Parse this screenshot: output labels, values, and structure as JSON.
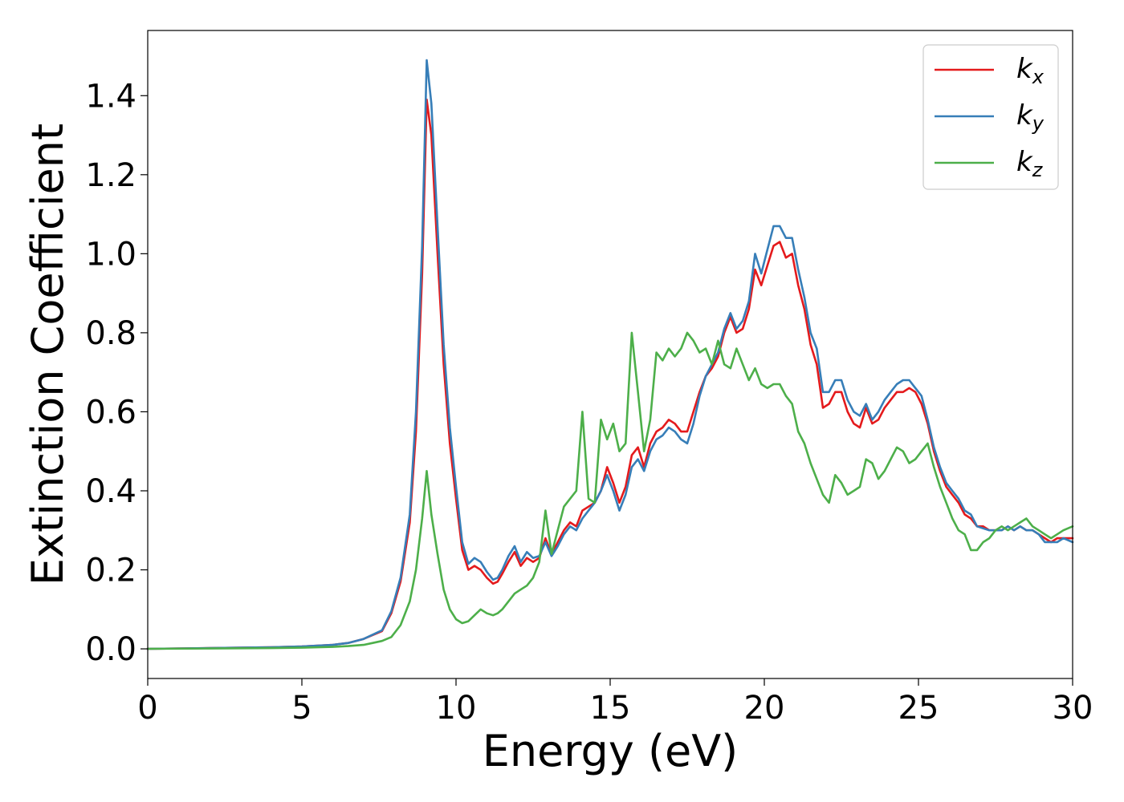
{
  "chart_data": {
    "type": "line",
    "xlabel": "Energy (eV)",
    "ylabel": "Extinction Coefficient",
    "xlim": [
      0,
      30
    ],
    "ylim": [
      -0.075,
      1.565
    ],
    "xticks": [
      0,
      5,
      10,
      15,
      20,
      25,
      30
    ],
    "xtick_labels": [
      "0",
      "5",
      "10",
      "15",
      "20",
      "25",
      "30"
    ],
    "yticks": [
      0.0,
      0.2,
      0.4,
      0.6,
      0.8,
      1.0,
      1.2,
      1.4
    ],
    "ytick_labels": [
      "0.0",
      "0.2",
      "0.4",
      "0.6",
      "0.8",
      "1.0",
      "1.2",
      "1.4"
    ],
    "grid": false,
    "legend_position": "top-right",
    "series": [
      {
        "name": "k_x",
        "legend_base": "k",
        "legend_sub": "x",
        "color": "#e41a1c",
        "x": [
          0,
          2,
          4,
          5,
          6,
          6.5,
          7,
          7.3,
          7.6,
          7.9,
          8.2,
          8.5,
          8.7,
          8.9,
          9.05,
          9.2,
          9.4,
          9.6,
          9.8,
          10.0,
          10.2,
          10.4,
          10.6,
          10.8,
          11.0,
          11.2,
          11.35,
          11.5,
          11.7,
          11.9,
          12.1,
          12.3,
          12.5,
          12.7,
          12.9,
          13.1,
          13.3,
          13.5,
          13.7,
          13.9,
          14.1,
          14.3,
          14.5,
          14.7,
          14.9,
          15.1,
          15.3,
          15.5,
          15.7,
          15.9,
          16.1,
          16.3,
          16.5,
          16.7,
          16.9,
          17.1,
          17.3,
          17.5,
          17.7,
          17.9,
          18.1,
          18.3,
          18.5,
          18.7,
          18.9,
          19.1,
          19.3,
          19.5,
          19.7,
          19.9,
          20.1,
          20.3,
          20.5,
          20.7,
          20.9,
          21.1,
          21.3,
          21.5,
          21.7,
          21.9,
          22.1,
          22.3,
          22.5,
          22.7,
          22.9,
          23.1,
          23.3,
          23.5,
          23.7,
          23.9,
          24.1,
          24.3,
          24.5,
          24.7,
          24.9,
          25.1,
          25.3,
          25.5,
          25.7,
          25.9,
          26.1,
          26.3,
          26.5,
          26.7,
          26.9,
          27.1,
          27.3,
          27.5,
          27.7,
          27.9,
          28.1,
          28.3,
          28.5,
          28.7,
          28.9,
          29.1,
          29.3,
          29.5,
          29.7,
          30.0
        ],
        "y": [
          0.0,
          0.002,
          0.004,
          0.006,
          0.01,
          0.015,
          0.025,
          0.035,
          0.045,
          0.09,
          0.17,
          0.32,
          0.55,
          0.95,
          1.39,
          1.3,
          1.0,
          0.72,
          0.52,
          0.38,
          0.25,
          0.2,
          0.21,
          0.2,
          0.18,
          0.165,
          0.17,
          0.19,
          0.22,
          0.245,
          0.21,
          0.23,
          0.22,
          0.23,
          0.28,
          0.24,
          0.27,
          0.3,
          0.32,
          0.31,
          0.35,
          0.36,
          0.37,
          0.4,
          0.46,
          0.42,
          0.37,
          0.41,
          0.49,
          0.51,
          0.46,
          0.52,
          0.55,
          0.56,
          0.58,
          0.57,
          0.55,
          0.55,
          0.6,
          0.65,
          0.69,
          0.71,
          0.74,
          0.8,
          0.84,
          0.8,
          0.81,
          0.86,
          0.96,
          0.92,
          0.97,
          1.02,
          1.03,
          0.99,
          1.0,
          0.92,
          0.86,
          0.77,
          0.72,
          0.61,
          0.62,
          0.65,
          0.65,
          0.6,
          0.57,
          0.56,
          0.61,
          0.57,
          0.58,
          0.61,
          0.63,
          0.65,
          0.65,
          0.66,
          0.65,
          0.62,
          0.57,
          0.5,
          0.45,
          0.41,
          0.39,
          0.37,
          0.34,
          0.33,
          0.31,
          0.31,
          0.3,
          0.3,
          0.3,
          0.31,
          0.3,
          0.31,
          0.3,
          0.3,
          0.29,
          0.28,
          0.27,
          0.28,
          0.28,
          0.28
        ]
      },
      {
        "name": "k_y",
        "legend_base": "k",
        "legend_sub": "y",
        "color": "#377eb8",
        "x": [
          0,
          2,
          4,
          5,
          6,
          6.5,
          7,
          7.3,
          7.6,
          7.9,
          8.2,
          8.5,
          8.7,
          8.9,
          9.05,
          9.2,
          9.4,
          9.6,
          9.8,
          10.0,
          10.2,
          10.4,
          10.6,
          10.8,
          11.0,
          11.2,
          11.35,
          11.5,
          11.7,
          11.9,
          12.1,
          12.3,
          12.5,
          12.7,
          12.9,
          13.1,
          13.3,
          13.5,
          13.7,
          13.9,
          14.1,
          14.3,
          14.5,
          14.7,
          14.9,
          15.1,
          15.3,
          15.5,
          15.7,
          15.9,
          16.1,
          16.3,
          16.5,
          16.7,
          16.9,
          17.1,
          17.3,
          17.5,
          17.7,
          17.9,
          18.1,
          18.3,
          18.5,
          18.7,
          18.9,
          19.1,
          19.3,
          19.5,
          19.7,
          19.9,
          20.1,
          20.3,
          20.5,
          20.7,
          20.9,
          21.1,
          21.3,
          21.5,
          21.7,
          21.9,
          22.1,
          22.3,
          22.5,
          22.7,
          22.9,
          23.1,
          23.3,
          23.5,
          23.7,
          23.9,
          24.1,
          24.3,
          24.5,
          24.7,
          24.9,
          25.1,
          25.3,
          25.5,
          25.7,
          25.9,
          26.1,
          26.3,
          26.5,
          26.7,
          26.9,
          27.1,
          27.3,
          27.5,
          27.7,
          27.9,
          28.1,
          28.3,
          28.5,
          28.7,
          28.9,
          29.1,
          29.3,
          29.5,
          29.7,
          30.0
        ],
        "y": [
          0.0,
          0.002,
          0.004,
          0.006,
          0.01,
          0.015,
          0.025,
          0.036,
          0.047,
          0.095,
          0.18,
          0.34,
          0.6,
          1.02,
          1.49,
          1.38,
          1.07,
          0.77,
          0.56,
          0.41,
          0.27,
          0.215,
          0.23,
          0.22,
          0.195,
          0.175,
          0.18,
          0.2,
          0.235,
          0.26,
          0.22,
          0.245,
          0.23,
          0.235,
          0.27,
          0.235,
          0.26,
          0.29,
          0.31,
          0.3,
          0.33,
          0.35,
          0.37,
          0.4,
          0.44,
          0.4,
          0.35,
          0.39,
          0.46,
          0.48,
          0.45,
          0.5,
          0.53,
          0.54,
          0.56,
          0.55,
          0.53,
          0.52,
          0.57,
          0.64,
          0.69,
          0.72,
          0.75,
          0.81,
          0.85,
          0.81,
          0.83,
          0.88,
          1.0,
          0.95,
          1.01,
          1.07,
          1.07,
          1.04,
          1.04,
          0.96,
          0.89,
          0.8,
          0.76,
          0.65,
          0.65,
          0.68,
          0.68,
          0.63,
          0.6,
          0.59,
          0.62,
          0.58,
          0.6,
          0.63,
          0.65,
          0.67,
          0.68,
          0.68,
          0.66,
          0.64,
          0.58,
          0.51,
          0.46,
          0.42,
          0.4,
          0.38,
          0.35,
          0.34,
          0.31,
          0.305,
          0.3,
          0.3,
          0.3,
          0.31,
          0.3,
          0.31,
          0.3,
          0.3,
          0.29,
          0.27,
          0.27,
          0.27,
          0.28,
          0.27
        ]
      },
      {
        "name": "k_z",
        "legend_base": "k",
        "legend_sub": "z",
        "color": "#4daf4a",
        "x": [
          0,
          2,
          4,
          5,
          6,
          6.5,
          7,
          7.3,
          7.6,
          7.9,
          8.2,
          8.5,
          8.7,
          8.9,
          9.05,
          9.2,
          9.4,
          9.6,
          9.8,
          10.0,
          10.2,
          10.4,
          10.6,
          10.8,
          11.0,
          11.2,
          11.35,
          11.5,
          11.7,
          11.9,
          12.1,
          12.3,
          12.5,
          12.7,
          12.9,
          13.1,
          13.3,
          13.5,
          13.7,
          13.9,
          14.1,
          14.3,
          14.5,
          14.7,
          14.9,
          15.1,
          15.3,
          15.5,
          15.7,
          15.9,
          16.1,
          16.3,
          16.5,
          16.7,
          16.9,
          17.1,
          17.3,
          17.5,
          17.7,
          17.9,
          18.1,
          18.3,
          18.5,
          18.7,
          18.9,
          19.1,
          19.3,
          19.5,
          19.7,
          19.9,
          20.1,
          20.3,
          20.5,
          20.7,
          20.9,
          21.1,
          21.3,
          21.5,
          21.7,
          21.9,
          22.1,
          22.3,
          22.5,
          22.7,
          22.9,
          23.1,
          23.3,
          23.5,
          23.7,
          23.9,
          24.1,
          24.3,
          24.5,
          24.7,
          24.9,
          25.1,
          25.3,
          25.5,
          25.7,
          25.9,
          26.1,
          26.3,
          26.5,
          26.7,
          26.9,
          27.1,
          27.3,
          27.5,
          27.7,
          27.9,
          28.1,
          28.3,
          28.5,
          28.7,
          28.9,
          29.1,
          29.3,
          29.5,
          29.7,
          30.0
        ],
        "y": [
          0.0,
          0.001,
          0.002,
          0.003,
          0.005,
          0.007,
          0.01,
          0.015,
          0.02,
          0.03,
          0.06,
          0.12,
          0.2,
          0.33,
          0.45,
          0.34,
          0.24,
          0.15,
          0.1,
          0.075,
          0.065,
          0.07,
          0.085,
          0.1,
          0.09,
          0.085,
          0.09,
          0.1,
          0.12,
          0.14,
          0.15,
          0.16,
          0.18,
          0.22,
          0.35,
          0.24,
          0.3,
          0.36,
          0.38,
          0.4,
          0.6,
          0.38,
          0.37,
          0.58,
          0.53,
          0.57,
          0.5,
          0.52,
          0.8,
          0.65,
          0.5,
          0.58,
          0.75,
          0.73,
          0.76,
          0.74,
          0.76,
          0.8,
          0.78,
          0.75,
          0.76,
          0.72,
          0.78,
          0.72,
          0.71,
          0.76,
          0.72,
          0.68,
          0.71,
          0.67,
          0.66,
          0.67,
          0.67,
          0.64,
          0.62,
          0.55,
          0.52,
          0.47,
          0.43,
          0.39,
          0.37,
          0.44,
          0.42,
          0.39,
          0.4,
          0.41,
          0.48,
          0.47,
          0.43,
          0.45,
          0.48,
          0.51,
          0.5,
          0.47,
          0.48,
          0.5,
          0.52,
          0.46,
          0.41,
          0.37,
          0.33,
          0.3,
          0.29,
          0.25,
          0.25,
          0.27,
          0.28,
          0.3,
          0.31,
          0.3,
          0.31,
          0.32,
          0.33,
          0.31,
          0.3,
          0.29,
          0.28,
          0.29,
          0.3,
          0.31
        ]
      }
    ]
  }
}
